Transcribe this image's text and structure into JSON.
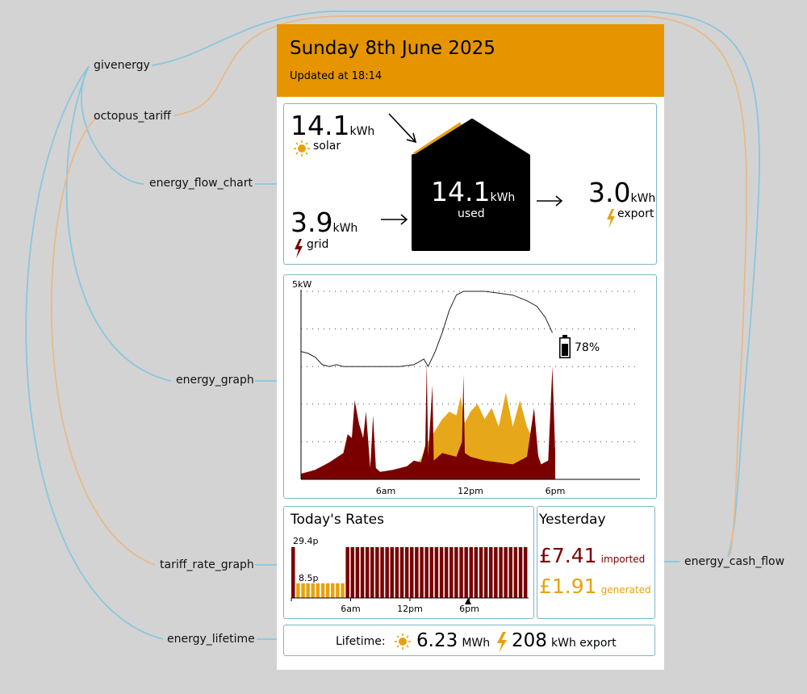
{
  "labels": {
    "givenergy": "givenergy",
    "octopus_tariff": "octopus_tariff",
    "energy_flow_chart": "energy_flow_chart",
    "energy_graph": "energy_graph",
    "tariff_rate_graph": "tariff_rate_graph",
    "energy_lifetime": "energy_lifetime",
    "energy_cash_flow": "energy_cash_flow"
  },
  "header": {
    "date": "Sunday 8th June 2025",
    "updated": "Updated at 18:14"
  },
  "flow": {
    "solar_value": "14.1",
    "solar_unit": "kWh",
    "solar_label": "solar",
    "grid_value": "3.9",
    "grid_unit": "kWh",
    "grid_label": "grid",
    "used_value": "14.1",
    "used_unit": "kWh",
    "used_label": "used",
    "export_value": "3.0",
    "export_unit": "kWh",
    "export_label": "export"
  },
  "graph": {
    "ylabel": "5kW",
    "battery_pct": "78%",
    "x_ticks": [
      "6am",
      "12pm",
      "6pm"
    ]
  },
  "rates": {
    "title": "Today's Rates",
    "high": "29.4p",
    "low": "8.5p",
    "x_ticks": [
      "6am",
      "12pm",
      "6pm"
    ]
  },
  "yesterday": {
    "title": "Yesterday",
    "imported_value": "£7.41",
    "imported_label": "imported",
    "generated_value": "£1.91",
    "generated_label": "generated"
  },
  "lifetime": {
    "label": "Lifetime:",
    "solar_value": "6.23",
    "solar_unit": "MWh",
    "export_value": "208",
    "export_unit": "kWh export"
  },
  "colors": {
    "header_bg": "#e69500",
    "solar": "#e6a20e",
    "grid": "#7a0000",
    "border": "#7fb6c9",
    "leader_blue": "#8ac6de",
    "leader_orange": "#e8b98a"
  },
  "chart_data": [
    {
      "type": "area",
      "title": "",
      "ylabel": "5kW",
      "ylim": [
        0,
        5
      ],
      "x_unit": "hour of day",
      "xlim": [
        0,
        24
      ],
      "x_ticks": [
        "6am",
        "12pm",
        "6pm"
      ],
      "grid": "dotted horizontal",
      "battery_soc_percent_now": 78,
      "series": [
        {
          "name": "grid",
          "points": [
            [
              0,
              0.15
            ],
            [
              1,
              0.25
            ],
            [
              2,
              0.45
            ],
            [
              3,
              0.7
            ],
            [
              3.3,
              1.2
            ],
            [
              3.6,
              1.1
            ],
            [
              3.8,
              2.1
            ],
            [
              4.1,
              1.5
            ],
            [
              4.4,
              1.1
            ],
            [
              4.6,
              1.8
            ],
            [
              4.9,
              0.3
            ],
            [
              5.1,
              1.7
            ],
            [
              5.3,
              0.3
            ],
            [
              5.6,
              0.2
            ],
            [
              6.5,
              0.25
            ],
            [
              7.5,
              0.35
            ],
            [
              8.0,
              0.5
            ],
            [
              8.5,
              0.45
            ],
            [
              8.8,
              0.9
            ],
            [
              8.9,
              3.1
            ],
            [
              9.0,
              0.6
            ],
            [
              9.3,
              2.5
            ],
            [
              9.4,
              0.5
            ],
            [
              10,
              0.7
            ],
            [
              11,
              0.6
            ],
            [
              11.4,
              1.0
            ],
            [
              11.5,
              2.8
            ],
            [
              11.6,
              0.7
            ],
            [
              12,
              0.6
            ],
            [
              13,
              0.5
            ],
            [
              14,
              0.45
            ],
            [
              15,
              0.4
            ],
            [
              16,
              0.6
            ],
            [
              16.5,
              1.9
            ],
            [
              16.8,
              0.6
            ],
            [
              17,
              0.4
            ],
            [
              17.5,
              0.5
            ],
            [
              17.8,
              3.0
            ],
            [
              18,
              0.7
            ]
          ]
        },
        {
          "name": "solar",
          "points": [
            [
              6.5,
              0
            ],
            [
              7,
              0.1
            ],
            [
              8,
              0.3
            ],
            [
              8.5,
              0.55
            ],
            [
              9,
              1.0
            ],
            [
              9.5,
              1.3
            ],
            [
              10,
              1.6
            ],
            [
              10.5,
              1.8
            ],
            [
              11,
              1.7
            ],
            [
              11.3,
              2.2
            ],
            [
              11.6,
              1.5
            ],
            [
              12,
              1.8
            ],
            [
              12.5,
              2.0
            ],
            [
              13,
              1.6
            ],
            [
              13.5,
              1.9
            ],
            [
              14,
              1.4
            ],
            [
              14.5,
              2.3
            ],
            [
              15,
              1.4
            ],
            [
              15.5,
              2.1
            ],
            [
              16,
              1.4
            ],
            [
              16.5,
              1.0
            ],
            [
              17,
              0.4
            ],
            [
              17.5,
              0.2
            ],
            [
              18,
              0
            ]
          ]
        },
        {
          "name": "battery",
          "points": [
            [
              0,
              3.4
            ],
            [
              0.5,
              3.35
            ],
            [
              1,
              3.25
            ],
            [
              1.5,
              3.05
            ],
            [
              2,
              3.0
            ],
            [
              2.5,
              3.05
            ],
            [
              3,
              3.0
            ],
            [
              4,
              3.0
            ],
            [
              5,
              3.0
            ],
            [
              6,
              3.0
            ],
            [
              7,
              3.0
            ],
            [
              8,
              3.05
            ],
            [
              8.7,
              3.2
            ],
            [
              9,
              3.0
            ],
            [
              9.5,
              3.4
            ],
            [
              10,
              3.9
            ],
            [
              10.5,
              4.5
            ],
            [
              11,
              4.9
            ],
            [
              11.5,
              5.0
            ],
            [
              12,
              5.0
            ],
            [
              13,
              5.0
            ],
            [
              14,
              4.95
            ],
            [
              15,
              4.9
            ],
            [
              16,
              4.75
            ],
            [
              16.7,
              4.6
            ],
            [
              17.3,
              4.3
            ],
            [
              17.8,
              3.9
            ]
          ]
        }
      ]
    },
    {
      "type": "bar",
      "title": "Today's Rates",
      "unit": "p/kWh",
      "x_ticks": [
        "6am",
        "12pm",
        "6pm"
      ],
      "slots": "half-hourly 00:00–24:00",
      "values": [
        29.4,
        8.5,
        8.5,
        8.5,
        8.5,
        8.5,
        8.5,
        8.5,
        8.5,
        8.5,
        8.5,
        29.4,
        29.4,
        29.4,
        29.4,
        29.4,
        29.4,
        29.4,
        29.4,
        29.4,
        29.4,
        29.4,
        29.4,
        29.4,
        29.4,
        29.4,
        29.4,
        29.4,
        29.4,
        29.4,
        29.4,
        29.4,
        29.4,
        29.4,
        29.4,
        29.4,
        29.4,
        29.4,
        29.4,
        29.4,
        29.4,
        29.4,
        29.4,
        29.4,
        29.4,
        29.4,
        29.4,
        29.4
      ],
      "ylim": [
        0,
        29.4
      ]
    }
  ]
}
